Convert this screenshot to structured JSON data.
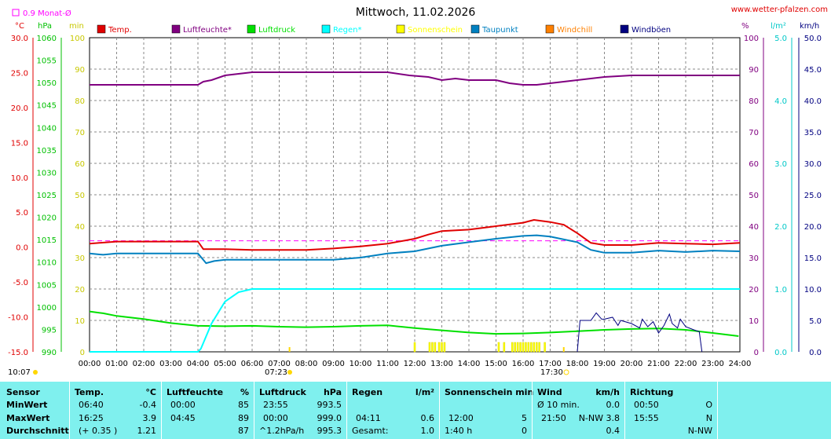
{
  "header": {
    "title": "Mittwoch, 11.02.2026",
    "site": "www.wetter-pfalzen.com",
    "monthly_avg": "0.9 Monat-Ø"
  },
  "units": {
    "left1": "°C",
    "left2": "hPa",
    "left3": "min",
    "right1": "%",
    "right2": "l/m²",
    "right3": "km/h"
  },
  "legend": [
    {
      "label": "Temp.",
      "color": "#e00000"
    },
    {
      "label": "Luftfeuchte*",
      "color": "#800080"
    },
    {
      "label": "Luftdruck",
      "color": "#00e000"
    },
    {
      "label": "Regen*",
      "color": "#00ffff"
    },
    {
      "label": "Sonnenschein",
      "color": "#ffff00"
    },
    {
      "label": "Taupunkt",
      "color": "#0080c0"
    },
    {
      "label": "Windchill",
      "color": "#ff8000"
    },
    {
      "label": "Windböen",
      "color": "#000080"
    }
  ],
  "chart_data": {
    "type": "line",
    "title": "Mittwoch, 11.02.2026",
    "x_ticks": [
      "00:00",
      "01:00",
      "02:00",
      "03:00",
      "04:00",
      "05:00",
      "06:00",
      "07:00",
      "08:00",
      "09:00",
      "10:00",
      "11:00",
      "12:00",
      "13:00",
      "14:00",
      "15:00",
      "16:00",
      "17:00",
      "18:00",
      "19:00",
      "20:00",
      "21:00",
      "22:00",
      "23:00",
      "24:00"
    ],
    "axes": {
      "temp": {
        "ticks": [
          "30.0",
          "25.0",
          "20.0",
          "15.0",
          "10.0",
          "5.0",
          "0.0",
          "-5.0",
          "-10.0",
          "-15.0"
        ],
        "range": [
          -15,
          30
        ]
      },
      "pressure": {
        "ticks": [
          "1060",
          "1055",
          "1050",
          "1045",
          "1040",
          "1035",
          "1030",
          "1025",
          "1020",
          "1015",
          "1010",
          "1005",
          "1000",
          "995",
          "990"
        ],
        "range": [
          990,
          1060
        ]
      },
      "minutes": {
        "ticks": [
          "100",
          "90",
          "80",
          "70",
          "60",
          "50",
          "40",
          "30",
          "20",
          "10",
          "0"
        ],
        "range": [
          0,
          100
        ]
      },
      "humidity": {
        "ticks": [
          "100",
          "90",
          "80",
          "70",
          "60",
          "50",
          "40",
          "30",
          "20",
          "10",
          "0"
        ],
        "range": [
          0,
          100
        ]
      },
      "rain": {
        "ticks": [
          "5.0",
          "4.0",
          "3.0",
          "2.0",
          "1.0",
          "0.0"
        ],
        "range": [
          0,
          5
        ]
      },
      "wind": {
        "ticks": [
          "50.0",
          "45.0",
          "40.0",
          "35.0",
          "30.0",
          "25.0",
          "20.0",
          "15.0",
          "10.0",
          "5.0",
          "0.0"
        ],
        "range": [
          0,
          50
        ]
      }
    },
    "monthly_avg_temp": 0.9,
    "sunrise_label": "07:23",
    "sunset_label": "17:30",
    "sunrise_hour": 7.38,
    "sunset_hour": 17.5,
    "corner_time": "10:07",
    "series": [
      {
        "name": "Temp.",
        "axis": "temp",
        "points": [
          [
            0,
            0.5
          ],
          [
            1,
            0.8
          ],
          [
            2,
            0.8
          ],
          [
            3,
            0.8
          ],
          [
            4,
            0.8
          ],
          [
            4.2,
            -0.3
          ],
          [
            5,
            -0.3
          ],
          [
            6,
            -0.4
          ],
          [
            7,
            -0.4
          ],
          [
            8,
            -0.4
          ],
          [
            9,
            -0.2
          ],
          [
            10,
            0.1
          ],
          [
            11,
            0.5
          ],
          [
            12,
            1.2
          ],
          [
            12.5,
            1.8
          ],
          [
            13,
            2.3
          ],
          [
            14,
            2.5
          ],
          [
            15,
            3.0
          ],
          [
            16,
            3.5
          ],
          [
            16.4,
            3.9
          ],
          [
            17,
            3.6
          ],
          [
            17.5,
            3.2
          ],
          [
            18,
            2.0
          ],
          [
            18.5,
            0.6
          ],
          [
            19,
            0.3
          ],
          [
            20,
            0.3
          ],
          [
            21,
            0.6
          ],
          [
            22,
            0.5
          ],
          [
            23,
            0.4
          ],
          [
            24,
            0.6
          ]
        ]
      },
      {
        "name": "Luftfeuchte*",
        "axis": "humidity",
        "points": [
          [
            0,
            85
          ],
          [
            4,
            85
          ],
          [
            4.2,
            86
          ],
          [
            4.5,
            86.5
          ],
          [
            5,
            88
          ],
          [
            6,
            89
          ],
          [
            7,
            89
          ],
          [
            8,
            89
          ],
          [
            9,
            89
          ],
          [
            10,
            89
          ],
          [
            11,
            89
          ],
          [
            11.8,
            88
          ],
          [
            12.5,
            87.5
          ],
          [
            13,
            86.5
          ],
          [
            13.5,
            87
          ],
          [
            14,
            86.5
          ],
          [
            15,
            86.5
          ],
          [
            15.5,
            85.5
          ],
          [
            16,
            85
          ],
          [
            16.5,
            85
          ],
          [
            17,
            85.5
          ],
          [
            18,
            86.5
          ],
          [
            19,
            87.5
          ],
          [
            20,
            88
          ],
          [
            21,
            88
          ],
          [
            22,
            88
          ],
          [
            23,
            88
          ],
          [
            24,
            88
          ]
        ]
      },
      {
        "name": "Luftdruck",
        "axis": "pressure",
        "points": [
          [
            0,
            999.0
          ],
          [
            0.5,
            998.6
          ],
          [
            1,
            998.0
          ],
          [
            2,
            997.3
          ],
          [
            3,
            996.4
          ],
          [
            4,
            995.8
          ],
          [
            5,
            995.7
          ],
          [
            6,
            995.8
          ],
          [
            7,
            995.6
          ],
          [
            8,
            995.5
          ],
          [
            9,
            995.6
          ],
          [
            10,
            995.8
          ],
          [
            11,
            995.9
          ],
          [
            12,
            995.3
          ],
          [
            13,
            994.8
          ],
          [
            14,
            994.3
          ],
          [
            15,
            994.0
          ],
          [
            16,
            994.1
          ],
          [
            17,
            994.3
          ],
          [
            18,
            994.6
          ],
          [
            19,
            994.9
          ],
          [
            20,
            995.1
          ],
          [
            21,
            995.2
          ],
          [
            22,
            994.9
          ],
          [
            23,
            994.2
          ],
          [
            23.95,
            993.5
          ]
        ]
      },
      {
        "name": "Regen*",
        "axis": "rain",
        "points": [
          [
            0,
            0
          ],
          [
            4,
            0
          ],
          [
            4.11,
            0.05
          ],
          [
            4.5,
            0.45
          ],
          [
            5,
            0.8
          ],
          [
            5.5,
            0.95
          ],
          [
            6,
            1.0
          ],
          [
            24,
            1.0
          ]
        ]
      },
      {
        "name": "Taupunkt",
        "axis": "temp",
        "points": [
          [
            0,
            -0.9
          ],
          [
            0.5,
            -1.1
          ],
          [
            1,
            -0.9
          ],
          [
            2,
            -0.9
          ],
          [
            3,
            -0.9
          ],
          [
            4,
            -0.9
          ],
          [
            4.3,
            -2.3
          ],
          [
            4.6,
            -2.0
          ],
          [
            5,
            -1.8
          ],
          [
            6,
            -1.8
          ],
          [
            7,
            -1.8
          ],
          [
            8,
            -1.8
          ],
          [
            9,
            -1.8
          ],
          [
            10,
            -1.5
          ],
          [
            11,
            -0.9
          ],
          [
            12,
            -0.6
          ],
          [
            13,
            0.2
          ],
          [
            14,
            0.7
          ],
          [
            15,
            1.2
          ],
          [
            16,
            1.6
          ],
          [
            16.5,
            1.7
          ],
          [
            17,
            1.5
          ],
          [
            18,
            0.7
          ],
          [
            18.5,
            -0.4
          ],
          [
            19,
            -0.8
          ],
          [
            20,
            -0.8
          ],
          [
            21,
            -0.5
          ],
          [
            22,
            -0.7
          ],
          [
            23,
            -0.5
          ],
          [
            24,
            -0.6
          ]
        ]
      },
      {
        "name": "Windböen",
        "axis": "wind",
        "points": [
          [
            18,
            0
          ],
          [
            18.1,
            5
          ],
          [
            18.5,
            5
          ],
          [
            18.7,
            6.2
          ],
          [
            18.9,
            5.2
          ],
          [
            19,
            5.2
          ],
          [
            19.3,
            5.5
          ],
          [
            19.5,
            4.2
          ],
          [
            19.6,
            5.0
          ],
          [
            20,
            4.5
          ],
          [
            20.3,
            3.8
          ],
          [
            20.4,
            5.2
          ],
          [
            20.6,
            4.0
          ],
          [
            20.8,
            4.8
          ],
          [
            21,
            3.0
          ],
          [
            21.2,
            4.2
          ],
          [
            21.4,
            6.0
          ],
          [
            21.5,
            4.5
          ],
          [
            21.7,
            3.8
          ],
          [
            21.8,
            5.2
          ],
          [
            22,
            4.0
          ],
          [
            22.3,
            3.5
          ],
          [
            22.5,
            3.2
          ],
          [
            22.6,
            0
          ]
        ]
      }
    ],
    "sunshine_bars": [
      [
        12.0,
        3
      ],
      [
        12.55,
        3
      ],
      [
        12.65,
        3
      ],
      [
        12.75,
        3
      ],
      [
        12.9,
        3
      ],
      [
        13.0,
        3
      ],
      [
        13.1,
        3
      ],
      [
        15.1,
        3
      ],
      [
        15.3,
        3
      ],
      [
        15.6,
        3
      ],
      [
        15.7,
        3
      ],
      [
        15.8,
        3
      ],
      [
        15.9,
        3
      ],
      [
        16.0,
        3
      ],
      [
        16.1,
        3
      ],
      [
        16.2,
        3
      ],
      [
        16.3,
        3
      ],
      [
        16.4,
        3
      ],
      [
        16.5,
        3
      ],
      [
        16.6,
        3
      ],
      [
        16.8,
        3
      ]
    ]
  },
  "summary": {
    "rows": [
      "Sensor",
      "MinWert",
      "MaxWert",
      "Durchschnitt"
    ],
    "temp": {
      "head": "Temp.",
      "unit": "°C",
      "min_time": "06:40",
      "min": "-0.4",
      "max_time": "16:25",
      "max": "3.9",
      "avg_note": "(+ 0.35 )",
      "avg": "1.21"
    },
    "hum": {
      "head": "Luftfeuchte",
      "unit": "%",
      "min_time": "00:00",
      "min": "85",
      "max_time": "04:45",
      "max": "89",
      "avg": "87"
    },
    "press": {
      "head": "Luftdruck",
      "unit": "hPa",
      "min_time": "23:55",
      "min": "993.5",
      "max_time": "00:00",
      "max": "999.0",
      "avg_note": "^1.2hPa/h",
      "avg": "995.3"
    },
    "rain": {
      "head": "Regen",
      "unit": "l/m²",
      "max_time": "04:11",
      "max": "0.6",
      "avg_note": "Gesamt:",
      "avg": "1.0"
    },
    "sun": {
      "head": "Sonnenschein min",
      "max_time": "12:00",
      "max": "5",
      "avg_note": "1:40 h",
      "avg": "0"
    },
    "wind": {
      "head": "Wind",
      "unit": "km/h",
      "min_label": "Ø 10 min.",
      "min": "0.0",
      "max_time": "21:50",
      "max": "N-NW 3.8",
      "avg": "0.4"
    },
    "dir": {
      "head": "Richtung",
      "min_time": "00:50",
      "min": "O",
      "max_time": "15:55",
      "max": "N",
      "avg": "N-NW"
    }
  }
}
